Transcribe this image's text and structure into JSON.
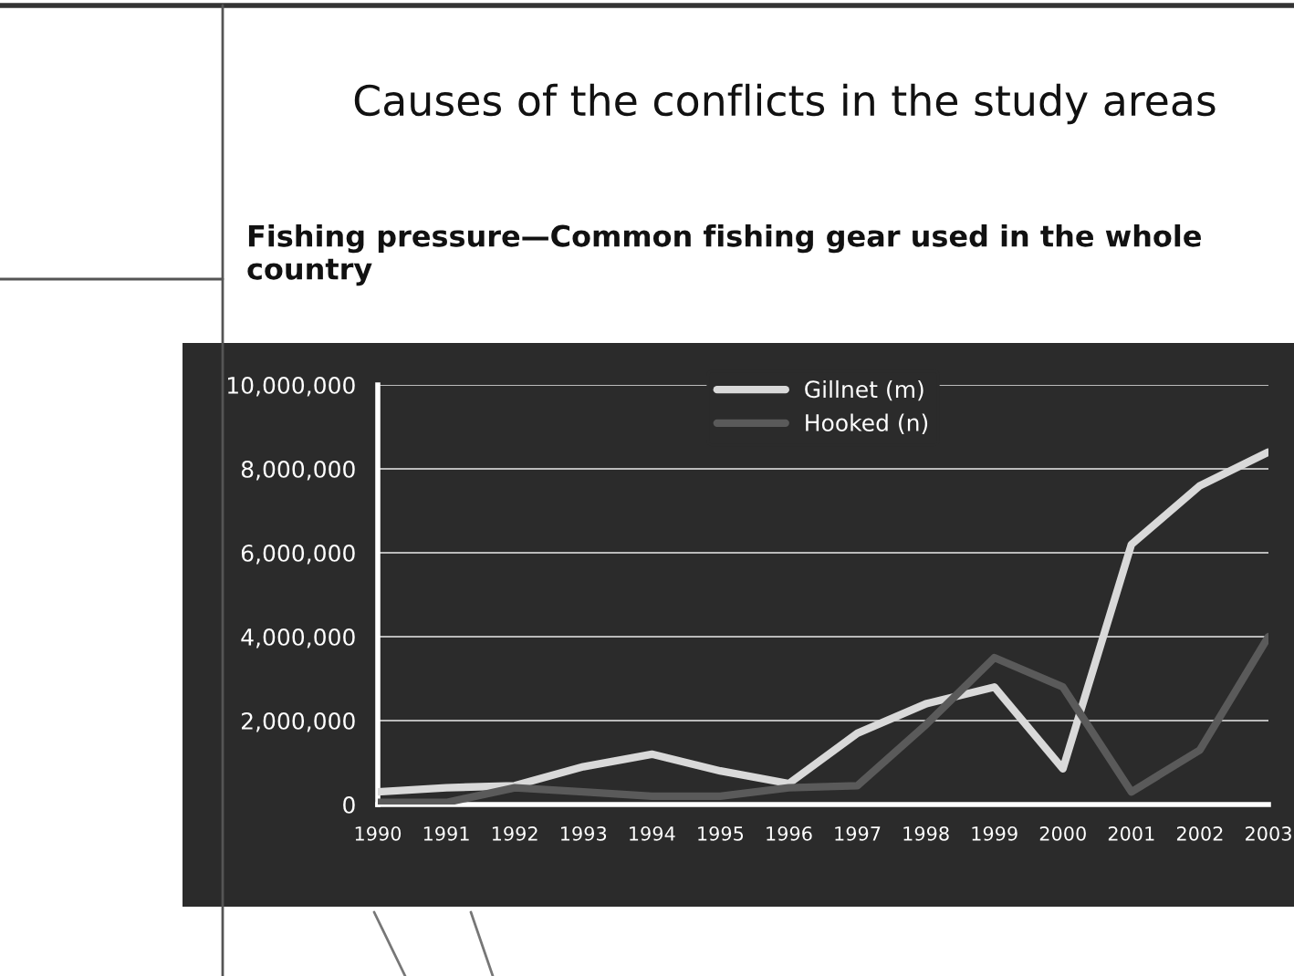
{
  "chart_data": {
    "type": "line",
    "title": "Causes of the conflicts in the study areas",
    "subtitle": "Fishing pressure—Common fishing gear used in the whole country",
    "x": [
      1990,
      1991,
      1992,
      1993,
      1994,
      1995,
      1996,
      1997,
      1998,
      1999,
      2000,
      2001,
      2002,
      2003
    ],
    "series": [
      {
        "name": "Gillnet (m)",
        "color": "#d9d9d9",
        "values": [
          300000,
          400000,
          450000,
          900000,
          1200000,
          800000,
          500000,
          1700000,
          2400000,
          2800000,
          850000,
          6200000,
          7600000,
          8400000
        ]
      },
      {
        "name": "Hooked (n)",
        "color": "#5a5a5a",
        "values": [
          50000,
          50000,
          400000,
          300000,
          200000,
          200000,
          400000,
          450000,
          1900000,
          3500000,
          2800000,
          300000,
          1300000,
          4000000
        ]
      }
    ],
    "xlim": [
      1990,
      2003
    ],
    "xticks": [
      1990,
      1991,
      1992,
      1993,
      1994,
      1995,
      1996,
      1997,
      1998,
      1999,
      2000,
      2001,
      2002,
      2003
    ],
    "ylim": [
      0,
      10000000
    ],
    "yticks": [
      {
        "value": 0,
        "label": "0"
      },
      {
        "value": 2000000,
        "label": "2,000,000"
      },
      {
        "value": 4000000,
        "label": "4,000,000"
      },
      {
        "value": 6000000,
        "label": "6,000,000"
      },
      {
        "value": 8000000,
        "label": "8,000,000"
      },
      {
        "value": 10000000,
        "label": "10,000,000"
      }
    ],
    "grid": "y",
    "legend": "top",
    "marker": "none",
    "line_style": "solid"
  }
}
